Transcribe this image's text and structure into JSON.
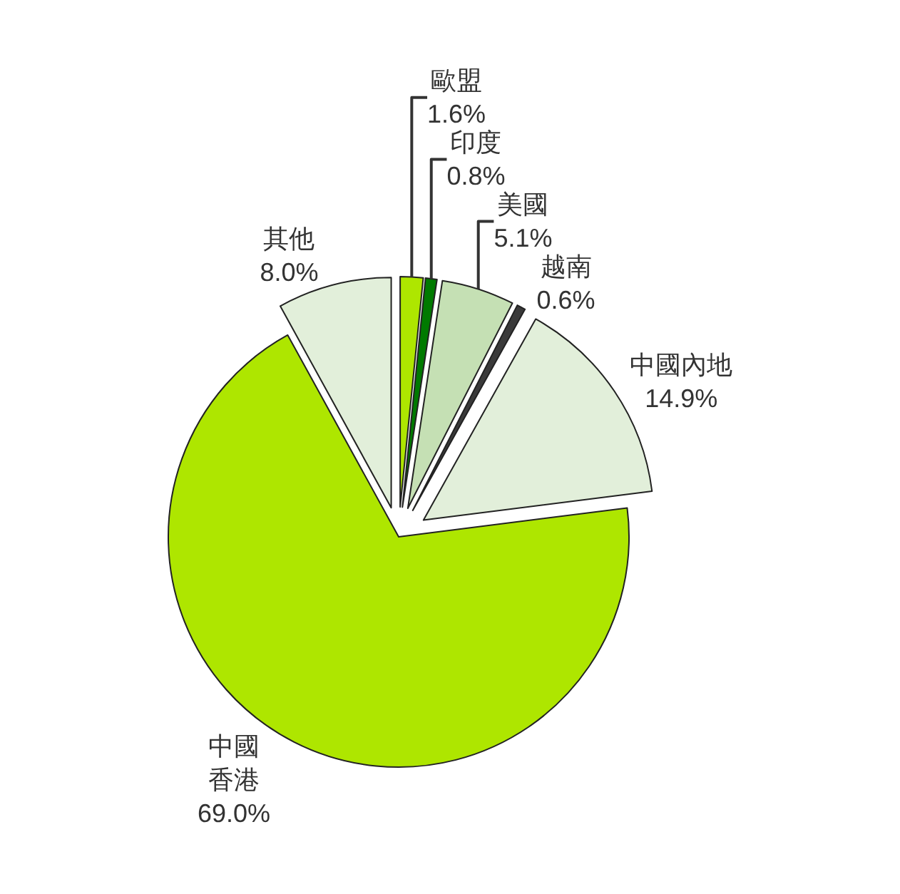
{
  "chart_data": {
    "type": "pie",
    "categories": [
      "歐盟",
      "印度",
      "美國",
      "越南",
      "中國內地",
      "中國香港",
      "其他"
    ],
    "values": [
      1.6,
      0.8,
      5.1,
      0.6,
      14.9,
      69.0,
      8.0
    ],
    "value_labels": [
      "1.6%",
      "0.8%",
      "5.1%",
      "0.6%",
      "14.9%",
      "69.0%",
      "8.0%"
    ],
    "colors": [
      "#aee600",
      "#007a00",
      "#c5e0b4",
      "#3a3a3a",
      "#e2efda",
      "#aee600",
      "#e2efda"
    ],
    "legend": false
  }
}
